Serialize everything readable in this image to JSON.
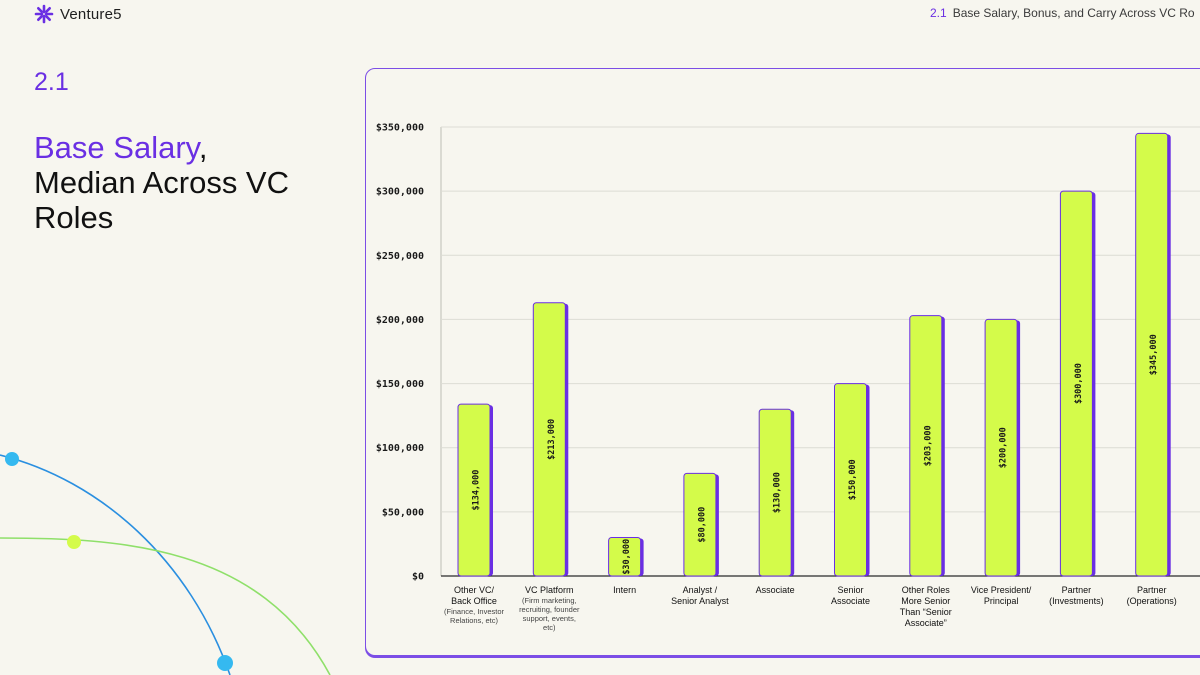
{
  "header": {
    "brand": "Venture5",
    "nav_number": "2.1",
    "nav_title": "Base Salary, Bonus, and Carry Across VC Ro"
  },
  "section": {
    "number": "2.1",
    "title_accent": "Base Salary",
    "title_comma": ",",
    "title_rest": "Median Across VC Roles"
  },
  "colors": {
    "accent": "#6a2fe3",
    "bar_fill": "#d4fb4a",
    "bar_shadow": "#6a2fe3",
    "grid": "#dcdcd4"
  },
  "chart_data": {
    "type": "bar",
    "ylim": [
      0,
      350000
    ],
    "yticks": [
      0,
      50000,
      100000,
      150000,
      200000,
      250000,
      300000,
      350000
    ],
    "ytick_labels": [
      "$0",
      "$50,000",
      "$100,000",
      "$150,000",
      "$200,000",
      "$250,000",
      "$300,000",
      "$350,000"
    ],
    "grid": true,
    "categories": [
      {
        "label": [
          "Other VC/",
          "Back Office"
        ],
        "sub": [
          "(Finance, Investor",
          "Relations, etc)"
        ]
      },
      {
        "label": [
          "VC Platform"
        ],
        "sub": [
          "(Firm marketing,",
          "recruiting, founder",
          "support, events,",
          "etc)"
        ]
      },
      {
        "label": [
          "Intern"
        ],
        "sub": []
      },
      {
        "label": [
          "Analyst /",
          "Senior Analyst"
        ],
        "sub": []
      },
      {
        "label": [
          "Associate"
        ],
        "sub": []
      },
      {
        "label": [
          "Senior",
          "Associate"
        ],
        "sub": []
      },
      {
        "label": [
          "Other Roles",
          "More Senior",
          "Than “Senior",
          "Associate”"
        ],
        "sub": []
      },
      {
        "label": [
          "Vice President/",
          "Principal"
        ],
        "sub": []
      },
      {
        "label": [
          "Partner",
          "(Investments)"
        ],
        "sub": []
      },
      {
        "label": [
          "Partner",
          "(Operations)"
        ],
        "sub": []
      }
    ],
    "values": [
      134000,
      213000,
      30000,
      80000,
      130000,
      150000,
      203000,
      200000,
      300000,
      345000
    ],
    "value_labels": [
      "$134,000",
      "$213,000",
      "$30,000",
      "$80,000",
      "$130,000",
      "$150,000",
      "$203,000",
      "$200,000",
      "$300,000",
      "$345,000"
    ]
  }
}
